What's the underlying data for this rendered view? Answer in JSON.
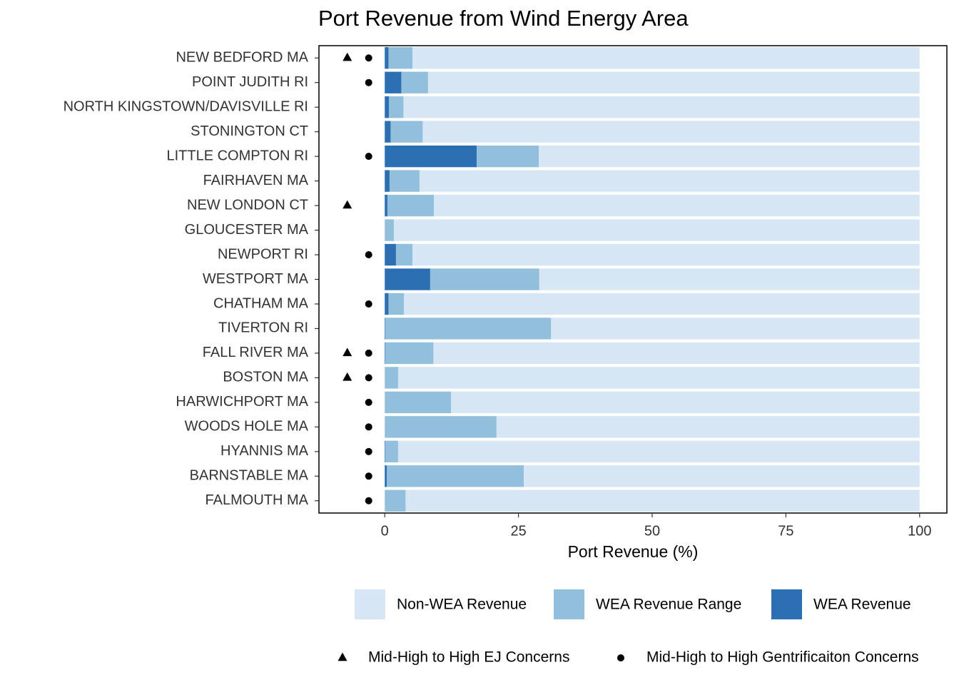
{
  "chart_data": {
    "type": "stacked-barh",
    "title": "Port Revenue from Wind Energy Area",
    "x_label": "Port Revenue (%)",
    "categories": [
      "NEW BEDFORD MA",
      "POINT JUDITH RI",
      "NORTH KINGSTOWN/DAVISVILLE RI",
      "STONINGTON CT",
      "LITTLE COMPTON RI",
      "FAIRHAVEN MA",
      "NEW LONDON CT",
      "GLOUCESTER MA",
      "NEWPORT RI",
      "WESTPORT MA",
      "CHATHAM MA",
      "TIVERTON RI",
      "FALL RIVER MA",
      "BOSTON MA",
      "HARWICHPORT MA",
      "WOODS HOLE MA",
      "HYANNIS MA",
      "BARNSTABLE MA",
      "FALMOUTH MA"
    ],
    "series": [
      {
        "name": "Non-WEA Revenue",
        "color": "#d6e6f5",
        "values": [
          94.8,
          91.9,
          96.5,
          92.9,
          71.2,
          93.5,
          90.8,
          98.3,
          94.8,
          71.1,
          96.4,
          68.9,
          90.9,
          97.5,
          87.6,
          79.1,
          97.5,
          74.0,
          96.1
        ]
      },
      {
        "name": "WEA Revenue Range",
        "color": "#91bfdc",
        "values": [
          4.5,
          5.0,
          2.7,
          6.0,
          11.6,
          5.6,
          8.7,
          1.7,
          3.1,
          20.4,
          2.9,
          31.0,
          9.0,
          2.5,
          12.4,
          20.9,
          2.4,
          25.6,
          3.9
        ]
      },
      {
        "name": "WEA Revenue",
        "color": "#2c6fb2",
        "values": [
          0.7,
          3.1,
          0.8,
          1.1,
          17.2,
          0.9,
          0.5,
          0,
          2.1,
          8.5,
          0.7,
          0.1,
          0.1,
          0,
          0,
          0,
          0.1,
          0.4,
          0
        ]
      }
    ],
    "markers": [
      {
        "name": "Mid-High to High EJ Concerns",
        "shape": "triangle",
        "color": "#000000",
        "x": [
          -7,
          null,
          null,
          null,
          null,
          null,
          -7,
          null,
          null,
          null,
          null,
          null,
          -7,
          -7,
          null,
          null,
          null,
          null,
          null
        ]
      },
      {
        "name": "Mid-High to High Gentrificaiton Concerns",
        "shape": "circle",
        "color": "#000000",
        "x": [
          -3,
          -3,
          null,
          null,
          -3,
          null,
          null,
          null,
          -3,
          null,
          -3,
          null,
          -3,
          -3,
          -3,
          -3,
          -3,
          -3,
          -3
        ]
      }
    ],
    "xlim": [
      -12.3,
      105.1
    ],
    "xticks": [
      0,
      25,
      50,
      75,
      100
    ],
    "grid": false
  }
}
